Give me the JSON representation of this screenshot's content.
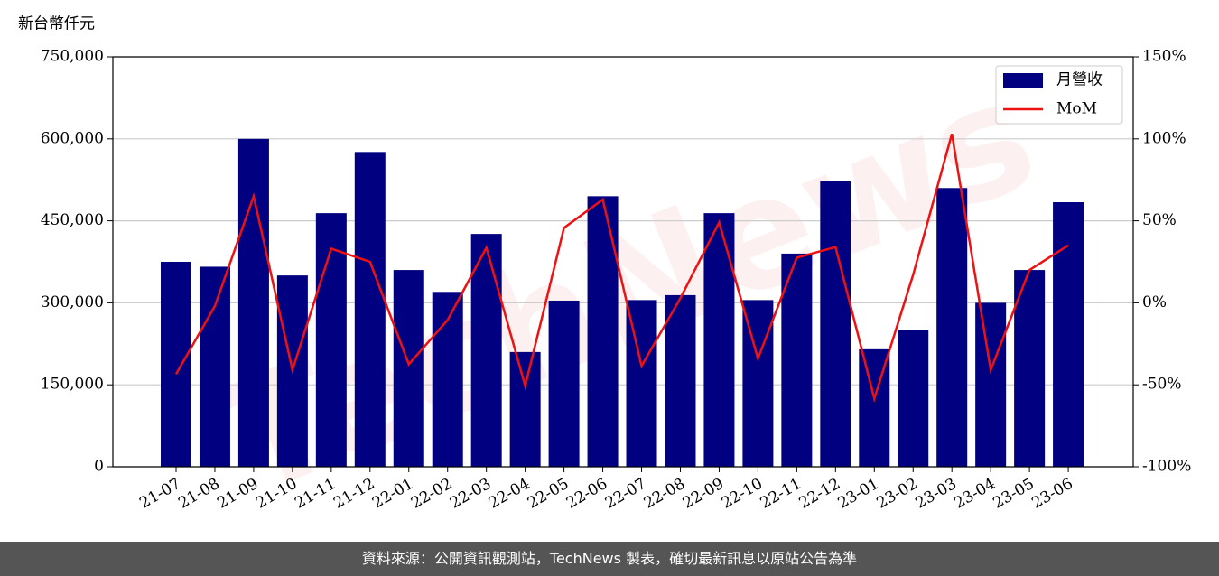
{
  "chart_data": {
    "type": "bar-line",
    "y_label": "新台幣仟元",
    "watermark": "TechNews",
    "categories": [
      "21-07",
      "21-08",
      "21-09",
      "21-10",
      "21-11",
      "21-12",
      "22-01",
      "22-02",
      "22-03",
      "22-04",
      "22-05",
      "22-06",
      "22-07",
      "22-08",
      "22-09",
      "22-10",
      "22-11",
      "22-12",
      "23-01",
      "23-02",
      "23-03",
      "23-04",
      "23-05",
      "23-06"
    ],
    "series": [
      {
        "name": "月營收",
        "type": "bar",
        "color": "#000080",
        "values": [
          375000,
          366000,
          600000,
          350000,
          464000,
          576000,
          360000,
          320000,
          426000,
          210000,
          304000,
          495000,
          305000,
          314000,
          464000,
          305000,
          390000,
          522000,
          215000,
          251000,
          510000,
          300000,
          360000,
          484000
        ]
      },
      {
        "name": "MoM",
        "type": "line",
        "axis": "y2",
        "color": "#ee1111",
        "values": [
          -43.5,
          -2,
          65,
          -41,
          33,
          25,
          -37.5,
          -10.5,
          33.6,
          -50.7,
          45.7,
          63,
          -38.5,
          2.8,
          49,
          -34,
          27.5,
          34,
          -58.4,
          17,
          103,
          -41,
          20,
          35
        ]
      }
    ],
    "ylim": [
      0,
      750000
    ],
    "yticks": [
      0,
      {
        "value": 150000,
        "label": "150,000"
      },
      {
        "value": 300000,
        "label": "300,000"
      },
      {
        "value": 450000,
        "label": "450,000"
      },
      {
        "value": 600000,
        "label": "600,000"
      },
      {
        "value": 750000,
        "label": "750,000"
      }
    ],
    "y2lim": [
      -100,
      150
    ],
    "y2ticks": [
      {
        "value": -100,
        "label": "-100%"
      },
      {
        "value": -50,
        "label": "-50%"
      },
      {
        "value": 0,
        "label": "0%"
      },
      {
        "value": 50,
        "label": "50%"
      },
      {
        "value": 100,
        "label": "100%"
      },
      {
        "value": 150,
        "label": "150%"
      }
    ],
    "grid": true,
    "legend": "upper right",
    "footer": "資料來源：公開資訊觀測站，TechNews 製表，確切最新訊息以原站公告為準"
  }
}
